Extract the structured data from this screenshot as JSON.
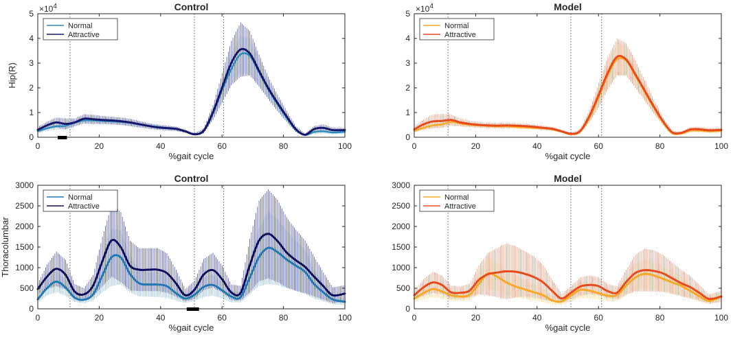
{
  "chart_data": [
    {
      "id": "p1",
      "type": "line",
      "title": "Control",
      "xlabel": "%gait cycle",
      "ylabel": "Hip(R)",
      "xlim": [
        0,
        100
      ],
      "ylim": [
        0,
        5
      ],
      "y_multiplier_label": "×10",
      "y_multiplier_exp": "4",
      "xticks": [
        0,
        20,
        40,
        60,
        80,
        100
      ],
      "yticks": [
        0,
        1,
        2,
        3,
        4,
        5
      ],
      "vlines": [
        10.5,
        51,
        60.5
      ],
      "sig_bars": [
        [
          6.5,
          9.5
        ]
      ],
      "legend": {
        "position": "top-left",
        "entries": [
          "Normal",
          "Attractive"
        ]
      },
      "x": [
        0,
        3,
        6,
        9,
        12,
        15,
        18,
        21,
        24,
        27,
        30,
        33,
        36,
        39,
        42,
        45,
        48,
        51,
        54,
        57,
        60,
        63,
        66,
        69,
        72,
        75,
        78,
        81,
        84,
        87,
        90,
        93,
        96,
        100
      ],
      "series": [
        {
          "name": "Normal",
          "color": "#2b8cbe",
          "lw": 2.5,
          "band_color": "#8fc0e0",
          "mean": [
            2.5,
            3.6,
            4.4,
            4.6,
            5.9,
            6.8,
            6.8,
            6.6,
            6.4,
            6.2,
            5.8,
            5.2,
            4.6,
            4.2,
            3.8,
            3.4,
            2.4,
            1.3,
            2.5,
            9.5,
            19.0,
            27.5,
            33.5,
            33.0,
            26.5,
            19.5,
            13.5,
            8.0,
            3.0,
            0.9,
            2.1,
            2.4,
            1.9,
            2.2
          ],
          "sd": [
            1.0,
            1.0,
            1.3,
            1.5,
            1.2,
            1.5,
            1.6,
            1.4,
            1.3,
            1.3,
            1.3,
            1.2,
            1.1,
            1.0,
            0.9,
            0.8,
            0.6,
            0.4,
            0.8,
            2.5,
            4.5,
            6.0,
            7.5,
            7.0,
            5.5,
            4.0,
            3.0,
            2.0,
            1.0,
            0.4,
            0.8,
            0.9,
            0.7,
            0.8
          ]
        },
        {
          "name": "Attractive",
          "color": "#15166b",
          "lw": 3,
          "band_color": "#3d3f9e",
          "mean": [
            3.0,
            4.8,
            6.0,
            5.4,
            6.0,
            7.5,
            7.3,
            7.0,
            6.8,
            6.5,
            6.0,
            5.3,
            4.6,
            4.0,
            3.7,
            3.4,
            2.4,
            1.2,
            2.6,
            10.0,
            20.0,
            30.0,
            35.5,
            34.0,
            27.0,
            20.0,
            14.0,
            8.5,
            3.3,
            1.0,
            3.3,
            3.8,
            2.9,
            2.9
          ],
          "sd": [
            1.2,
            1.5,
            2.0,
            2.2,
            1.6,
            1.8,
            1.8,
            1.6,
            1.5,
            1.5,
            1.5,
            1.3,
            1.1,
            1.0,
            1.0,
            0.9,
            0.6,
            0.4,
            1.0,
            3.0,
            6.0,
            9.0,
            11.0,
            9.0,
            6.5,
            4.5,
            3.3,
            2.2,
            1.2,
            0.5,
            1.3,
            1.4,
            1.0,
            0.9
          ]
        }
      ]
    },
    {
      "id": "p2",
      "type": "line",
      "title": "Model",
      "xlabel": "%gait cycle",
      "ylabel": "",
      "xlim": [
        0,
        100
      ],
      "ylim": [
        0,
        5
      ],
      "y_multiplier_label": "×10",
      "y_multiplier_exp": "4",
      "xticks": [
        0,
        20,
        40,
        60,
        80,
        100
      ],
      "yticks": [
        0,
        1,
        2,
        3,
        4,
        5
      ],
      "vlines": [
        11,
        51,
        61
      ],
      "sig_bars": [],
      "legend": {
        "position": "top-left",
        "entries": [
          "Normal",
          "Attractive"
        ]
      },
      "x": [
        0,
        3,
        6,
        9,
        12,
        15,
        18,
        21,
        24,
        27,
        30,
        33,
        36,
        39,
        42,
        45,
        48,
        51,
        54,
        57,
        60,
        63,
        66,
        69,
        72,
        75,
        78,
        81,
        84,
        87,
        90,
        93,
        96,
        100
      ],
      "series": [
        {
          "name": "Normal",
          "color": "#f9a825",
          "lw": 2.5,
          "band_color": "#fbd47a",
          "mean": [
            2.6,
            3.8,
            4.8,
            5.2,
            6.2,
            5.6,
            5.0,
            4.8,
            4.6,
            4.4,
            4.4,
            4.2,
            4.0,
            3.8,
            3.6,
            3.2,
            2.2,
            1.2,
            2.2,
            7.8,
            16.0,
            25.0,
            31.5,
            31.0,
            25.0,
            18.5,
            12.0,
            6.0,
            1.6,
            1.5,
            2.7,
            2.7,
            2.4,
            2.6
          ],
          "sd": [
            0.8,
            1.0,
            1.2,
            1.2,
            1.2,
            1.0,
            0.9,
            0.8,
            0.8,
            0.8,
            0.8,
            0.8,
            0.7,
            0.7,
            0.7,
            0.6,
            0.4,
            0.3,
            0.6,
            2.0,
            4.0,
            5.5,
            6.5,
            6.0,
            5.0,
            3.8,
            2.5,
            1.4,
            0.5,
            0.5,
            0.8,
            0.8,
            0.7,
            0.8
          ]
        },
        {
          "name": "Attractive",
          "color": "#e84a1c",
          "lw": 3,
          "band_color": "#e8896a",
          "mean": [
            3.2,
            5.2,
            6.4,
            6.6,
            7.0,
            6.0,
            5.4,
            5.0,
            4.8,
            4.7,
            4.8,
            4.7,
            4.5,
            4.2,
            3.8,
            3.4,
            2.4,
            1.4,
            2.5,
            8.5,
            17.0,
            26.0,
            32.5,
            31.5,
            25.5,
            19.0,
            12.5,
            6.5,
            2.0,
            1.8,
            3.2,
            3.2,
            2.8,
            3.0
          ],
          "sd": [
            1.2,
            2.0,
            2.8,
            2.8,
            2.2,
            1.6,
            1.3,
            1.2,
            1.1,
            1.1,
            1.1,
            1.0,
            1.0,
            0.9,
            0.9,
            0.8,
            0.6,
            0.4,
            0.9,
            2.5,
            5.0,
            6.5,
            7.5,
            6.5,
            5.5,
            4.0,
            2.8,
            1.5,
            0.6,
            0.6,
            1.0,
            1.0,
            0.9,
            0.9
          ]
        }
      ]
    },
    {
      "id": "p3",
      "type": "line",
      "title": "Control",
      "xlabel": "%gait cycle",
      "ylabel": "Thoracolumbar",
      "xlim": [
        0,
        100
      ],
      "ylim": [
        0,
        3000
      ],
      "y_multiplier_label": "",
      "y_multiplier_exp": "",
      "xticks": [
        0,
        20,
        40,
        60,
        80,
        100
      ],
      "yticks": [
        0,
        500,
        1000,
        1500,
        2000,
        2500,
        3000
      ],
      "vlines": [
        10.5,
        51,
        60.5
      ],
      "sig_bars": [
        [
          48.5,
          52.5
        ]
      ],
      "legend": {
        "position": "top-left",
        "entries": [
          "Normal",
          "Attractive"
        ]
      },
      "x": [
        0,
        3,
        6,
        9,
        12,
        15,
        18,
        21,
        24,
        27,
        30,
        33,
        36,
        39,
        42,
        45,
        48,
        51,
        54,
        57,
        60,
        63,
        66,
        69,
        72,
        75,
        78,
        81,
        84,
        87,
        90,
        93,
        96,
        100
      ],
      "series": [
        {
          "name": "Normal",
          "color": "#1f78b4",
          "lw": 3,
          "band_color": "#7fb3d9",
          "mean": [
            230,
            500,
            660,
            520,
            270,
            220,
            350,
            800,
            1250,
            1250,
            850,
            620,
            590,
            590,
            550,
            380,
            250,
            340,
            530,
            580,
            450,
            300,
            280,
            750,
            1250,
            1480,
            1380,
            1200,
            1050,
            900,
            600,
            400,
            230,
            170
          ],
          "sd": [
            80,
            180,
            250,
            200,
            100,
            90,
            150,
            400,
            700,
            650,
            450,
            320,
            300,
            300,
            280,
            180,
            110,
            150,
            240,
            260,
            200,
            140,
            130,
            400,
            700,
            880,
            800,
            700,
            620,
            540,
            350,
            220,
            120,
            80
          ]
        },
        {
          "name": "Attractive",
          "color": "#0d0d5e",
          "lw": 3,
          "band_color": "#37389a",
          "mean": [
            480,
            780,
            970,
            830,
            420,
            350,
            560,
            1150,
            1660,
            1500,
            1050,
            950,
            950,
            950,
            870,
            620,
            330,
            460,
            830,
            940,
            720,
            400,
            380,
            1050,
            1650,
            1820,
            1650,
            1370,
            1180,
            1020,
            780,
            550,
            330,
            370
          ],
          "sd": [
            140,
            300,
            420,
            360,
            180,
            150,
            260,
            600,
            880,
            850,
            600,
            520,
            520,
            520,
            480,
            330,
            150,
            220,
            380,
            420,
            330,
            190,
            180,
            650,
            980,
            1080,
            1000,
            850,
            740,
            640,
            480,
            330,
            190,
            200
          ]
        }
      ]
    },
    {
      "id": "p4",
      "type": "line",
      "title": "Model",
      "xlabel": "%gait cycle",
      "ylabel": "",
      "xlim": [
        0,
        100
      ],
      "ylim": [
        0,
        3000
      ],
      "y_multiplier_label": "",
      "y_multiplier_exp": "",
      "xticks": [
        0,
        20,
        40,
        60,
        80,
        100
      ],
      "yticks": [
        0,
        500,
        1000,
        1500,
        2000,
        2500,
        3000
      ],
      "vlines": [
        11,
        51,
        61
      ],
      "sig_bars": [],
      "legend": {
        "position": "top-left",
        "entries": [
          "Normal",
          "Attractive"
        ]
      },
      "x": [
        0,
        3,
        6,
        9,
        12,
        15,
        18,
        21,
        24,
        27,
        30,
        33,
        36,
        39,
        42,
        45,
        48,
        51,
        54,
        57,
        60,
        63,
        66,
        69,
        72,
        75,
        78,
        81,
        84,
        87,
        90,
        93,
        96,
        100
      ],
      "series": [
        {
          "name": "Normal",
          "color": "#f9a825",
          "lw": 3,
          "band_color": "#fbd47a",
          "mean": [
            250,
            380,
            480,
            420,
            330,
            300,
            340,
            600,
            860,
            780,
            640,
            540,
            470,
            400,
            330,
            200,
            180,
            320,
            460,
            440,
            380,
            320,
            330,
            560,
            760,
            850,
            810,
            730,
            640,
            560,
            430,
            300,
            190,
            300
          ],
          "sd": [
            80,
            150,
            200,
            170,
            130,
            110,
            130,
            250,
            380,
            350,
            300,
            260,
            230,
            200,
            170,
            100,
            90,
            140,
            200,
            190,
            160,
            130,
            140,
            240,
            320,
            360,
            340,
            300,
            260,
            230,
            180,
            130,
            80,
            110
          ]
        },
        {
          "name": "Attractive",
          "color": "#e84a1c",
          "lw": 3,
          "band_color": "#e8896a",
          "mean": [
            330,
            520,
            640,
            580,
            400,
            390,
            440,
            700,
            840,
            880,
            910,
            900,
            850,
            770,
            640,
            430,
            250,
            390,
            540,
            580,
            550,
            430,
            390,
            650,
            870,
            940,
            920,
            860,
            740,
            620,
            520,
            380,
            240,
            300
          ],
          "sd": [
            110,
            200,
            260,
            230,
            160,
            150,
            170,
            350,
            520,
            600,
            680,
            620,
            550,
            500,
            420,
            260,
            110,
            160,
            220,
            230,
            220,
            170,
            160,
            300,
            450,
            520,
            500,
            450,
            380,
            320,
            270,
            190,
            110,
            140
          ]
        }
      ]
    }
  ]
}
